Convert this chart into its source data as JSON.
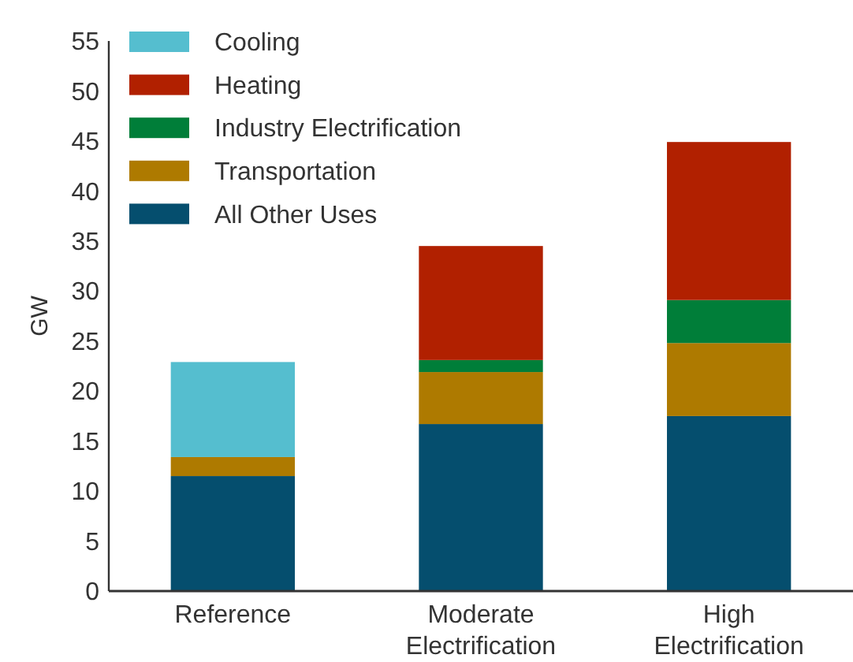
{
  "chart_data": {
    "type": "bar",
    "stacked": true,
    "ylabel": "GW",
    "categories": [
      "Reference",
      "Moderate\nElectrification",
      "High\nElectrification"
    ],
    "series": [
      {
        "name": "All Other Uses",
        "color": "#054e6e",
        "values": [
          11.5,
          16.7,
          17.5
        ]
      },
      {
        "name": "Transportation",
        "color": "#ae7a00",
        "values": [
          1.9,
          5.2,
          7.3
        ]
      },
      {
        "name": "Industry Electrification",
        "color": "#007e39",
        "values": [
          0,
          1.2,
          4.3
        ]
      },
      {
        "name": "Heating",
        "color": "#b12000",
        "values": [
          0,
          11.4,
          15.8
        ]
      },
      {
        "name": "Cooling",
        "color": "#55becf",
        "values": [
          9.5,
          0,
          0
        ]
      }
    ],
    "ylim": [
      0,
      55
    ],
    "yticks": [
      0,
      5,
      10,
      15,
      20,
      25,
      30,
      35,
      40,
      45,
      50,
      55
    ],
    "grid": false,
    "legend": "top left"
  }
}
